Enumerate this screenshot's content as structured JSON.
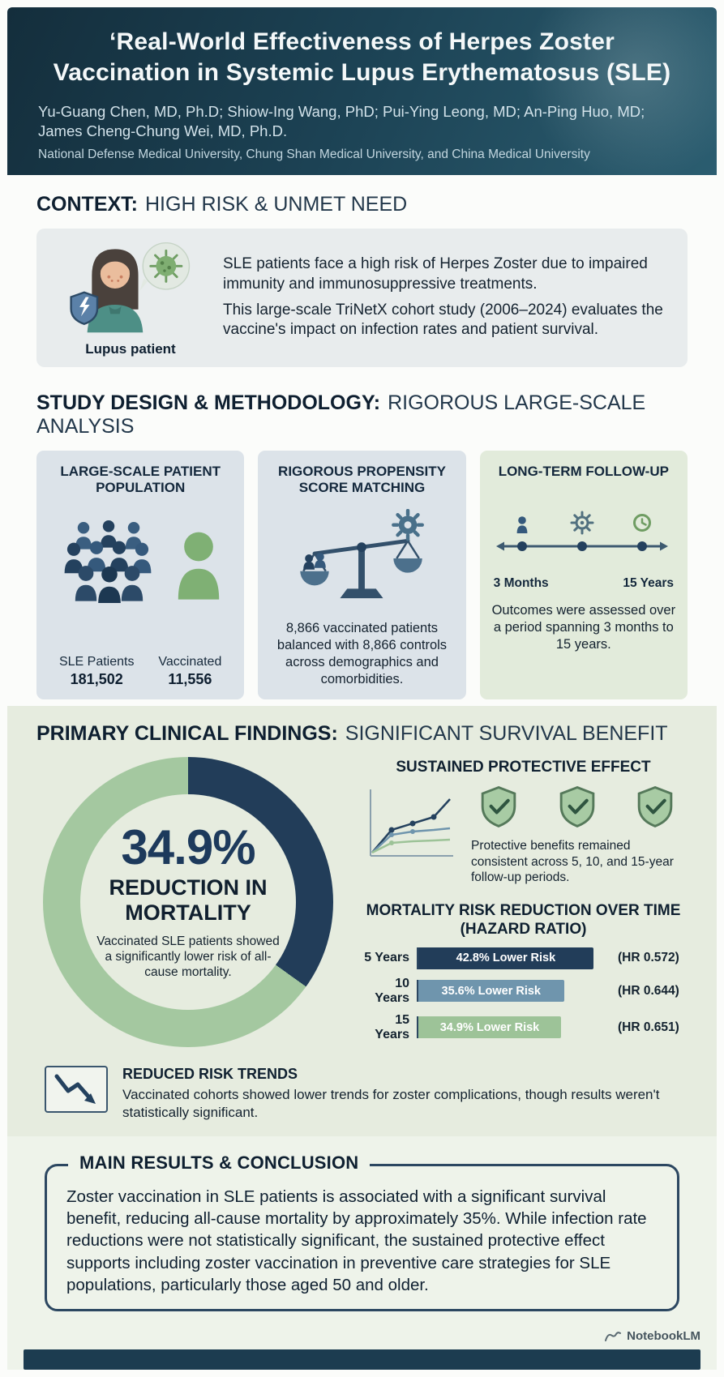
{
  "header": {
    "title": "‘Real-World Effectiveness of Herpes Zoster Vaccination in Systemic Lupus Erythematosus (SLE)",
    "authors": "Yu-Guang Chen, MD, Ph.D; Shiow-Ing Wang, PhD; Pui-Ying Leong, MD; An-Ping Huo, MD; James Cheng-Chung Wei, MD, Ph.D.",
    "affiliations": "National Defense Medical University, Chung Shan Medical University, and China Medical University"
  },
  "context": {
    "heading_strong": "CONTEXT:",
    "heading_light": "HIGH RISK & UNMET NEED",
    "illustration_caption": "Lupus patient",
    "para1": "SLE patients face a high risk of Herpes Zoster due to impaired immunity and immunosuppressive treatments.",
    "para2": "This large-scale TriNetX cohort study (2006–2024) evaluates the vaccine's impact on infection rates and patient survival."
  },
  "methodology": {
    "heading_strong": "STUDY DESIGN & METHODOLOGY:",
    "heading_light": "RIGOROUS LARGE-SCALE ANALYSIS",
    "cards": [
      {
        "title": "LARGE-SCALE PATIENT POPULATION",
        "stats": [
          {
            "label": "SLE Patients",
            "value": "181,502"
          },
          {
            "label": "Vaccinated",
            "value": "11,556"
          }
        ]
      },
      {
        "title": "RIGOROUS PROPENSITY SCORE MATCHING",
        "body": "8,866 vaccinated patients balanced with 8,866 controls across demographics and comorbidities."
      },
      {
        "title": "LONG-TERM FOLLOW-UP",
        "timeline_start": "3 Months",
        "timeline_end": "15 Years",
        "body": "Outcomes were assessed over a period spanning 3 months to 15 years."
      }
    ]
  },
  "findings": {
    "heading_strong": "PRIMARY CLINICAL FINDINGS:",
    "heading_light": "SIGNIFICANT SURVIVAL BENEFIT",
    "protective": {
      "title": "SUSTAINED PROTECTIVE EFFECT",
      "body": "Protective benefits remained consistent across 5, 10, and 15-year follow-up periods."
    },
    "trends": {
      "title": "REDUCED RISK TRENDS",
      "body": "Vaccinated cohorts showed lower trends for zoster complications, though results weren't statistically significant."
    }
  },
  "conclusion": {
    "title": "MAIN RESULTS & CONCLUSION",
    "body": "Zoster vaccination in SLE patients is associated with a significant survival benefit, reducing all-cause mortality by approximately 35%. While infection rate reductions were not statistically significant, the sustained protective effect supports including zoster vaccination in preventive care strategies for SLE populations, particularly those aged 50 and older."
  },
  "footer": {
    "brand": "NotebookLM"
  },
  "chart_data": [
    {
      "type": "pie",
      "title": "34.9% REDUCTION IN MORTALITY",
      "labels": [
        "Mortality reduction",
        "Remaining risk"
      ],
      "values": [
        34.9,
        65.1
      ],
      "center_value": "34.9%",
      "center_label": "REDUCTION IN MORTALITY",
      "caption": "Vaccinated SLE patients showed a significantly lower risk of all-cause mortality.",
      "colors": [
        "#223d59",
        "#a4c8a0"
      ]
    },
    {
      "type": "bar",
      "orientation": "horizontal",
      "title": "MORTALITY RISK REDUCTION OVER TIME",
      "subtitle": "(HAZARD RATIO)",
      "categories": [
        "5 Years",
        "10 Years",
        "15 Years"
      ],
      "values": [
        42.8,
        35.6,
        34.9
      ],
      "bar_labels": [
        "42.8% Lower Risk",
        "35.6% Lower Risk",
        "34.9% Lower Risk"
      ],
      "hazard_ratios": [
        0.572,
        0.644,
        0.651
      ],
      "hr_labels": [
        "(HR 0.572)",
        "(HR 0.644)",
        "(HR 0.651)"
      ],
      "colors": [
        "#223d59",
        "#6f95ad",
        "#9dc398"
      ],
      "xlim": [
        0,
        47
      ],
      "legend": "none",
      "grid": false
    }
  ],
  "theme": {
    "header_bg": "#1c3c50",
    "navy": "#223d59",
    "steel_blue": "#6f95ad",
    "green": "#9dc398",
    "findings_bg": "#e6ecdf",
    "card_blue_bg": "#dce3e9",
    "card_green_bg": "#e2ebdb",
    "footer_bar": "#1c3c50"
  },
  "icons": {
    "lupus-patient-illustration": "woman with facial rash, shield with lightning bolt, virus in speech bubble",
    "crowd-icon": "group of people silhouettes",
    "person-icon": "single person silhouette (vaccinated)",
    "balance-scale-icon": "balance scale with people and gear",
    "timeline-icon": "timeline arrow with person, gear and clock markers",
    "trend-chart-icon": "rising multi-line chart",
    "shield-check-icon": "shield with checkmark",
    "down-trend-icon": "downward zigzag arrow",
    "notebooklm-logo-icon": "NotebookLM swoosh logo"
  }
}
